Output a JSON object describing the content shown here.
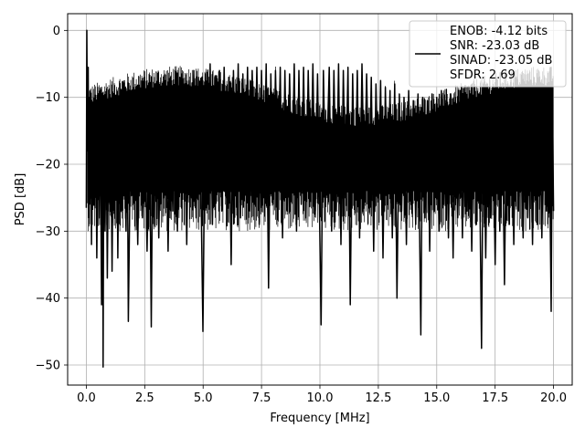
{
  "chart_data": {
    "type": "line",
    "xlabel": "Frequency [MHz]",
    "ylabel": "PSD [dB]",
    "xlim": [
      -0.8,
      20.8
    ],
    "ylim": [
      -53,
      2.5
    ],
    "xticks": [
      0.0,
      2.5,
      5.0,
      7.5,
      10.0,
      12.5,
      15.0,
      17.5,
      20.0
    ],
    "xtick_labels": [
      "0.0",
      "2.5",
      "5.0",
      "7.5",
      "10.0",
      "12.5",
      "15.0",
      "17.5",
      "20.0"
    ],
    "yticks": [
      0,
      -10,
      -20,
      -30,
      -40,
      -50
    ],
    "ytick_labels": [
      "0",
      "−10",
      "−20",
      "−30",
      "−40",
      "−50"
    ],
    "grid": true,
    "legend_position": "top-right",
    "series_color": "#000000",
    "legend_entries": [
      "ENOB: -4.12 bits",
      "SNR: -23.03 dB",
      "SINAD: -23.05 dB",
      "SFDR: 2.69"
    ],
    "series": [
      {
        "points": [
          [
            0.0,
            -26.5
          ],
          [
            0.02,
            0.0
          ],
          [
            0.05,
            -18.0
          ],
          [
            0.08,
            -5.5
          ],
          [
            0.1,
            -20.0
          ],
          [
            0.13,
            -10.0
          ],
          [
            0.16,
            -25.0
          ],
          [
            0.19,
            -12.0
          ],
          [
            0.22,
            -32.0
          ],
          [
            0.25,
            -16.0
          ],
          [
            0.3,
            -11.0
          ],
          [
            0.35,
            -24.0
          ],
          [
            0.4,
            -13.0
          ],
          [
            0.45,
            -34.0
          ],
          [
            0.5,
            -15.0
          ],
          [
            0.55,
            -28.0
          ],
          [
            0.6,
            -14.0
          ],
          [
            0.65,
            -41.0
          ],
          [
            0.7,
            -17.0
          ],
          [
            0.72,
            -50.3
          ],
          [
            0.75,
            -14.0
          ],
          [
            0.8,
            -30.0
          ],
          [
            0.85,
            -13.5
          ],
          [
            0.9,
            -37.0
          ],
          [
            0.95,
            -15.0
          ],
          [
            1.0,
            -26.0
          ],
          [
            1.05,
            -14.0
          ],
          [
            1.1,
            -36.0
          ],
          [
            1.15,
            -16.0
          ],
          [
            1.2,
            -24.0
          ],
          [
            1.3,
            -12.0
          ],
          [
            1.35,
            -34.0
          ],
          [
            1.4,
            -15.0
          ],
          [
            1.5,
            -27.0
          ],
          [
            1.6,
            -13.0
          ],
          [
            1.7,
            -30.0
          ],
          [
            1.75,
            -12.5
          ],
          [
            1.8,
            -43.5
          ],
          [
            1.9,
            -14.0
          ],
          [
            2.0,
            -26.0
          ],
          [
            2.1,
            -11.0
          ],
          [
            2.2,
            -32.0
          ],
          [
            2.3,
            -12.0
          ],
          [
            2.4,
            -28.0
          ],
          [
            2.5,
            -10.5
          ],
          [
            2.6,
            -33.0
          ],
          [
            2.7,
            -11.0
          ],
          [
            2.78,
            -44.3
          ],
          [
            2.85,
            -12.0
          ],
          [
            2.9,
            -29.0
          ],
          [
            3.0,
            -9.0
          ],
          [
            3.1,
            -31.0
          ],
          [
            3.2,
            -10.0
          ],
          [
            3.3,
            -25.0
          ],
          [
            3.4,
            -8.0
          ],
          [
            3.5,
            -33.0
          ],
          [
            3.6,
            -9.0
          ],
          [
            3.7,
            -27.0
          ],
          [
            3.8,
            -8.5
          ],
          [
            3.9,
            -30.0
          ],
          [
            4.0,
            -7.0
          ],
          [
            4.1,
            -24.0
          ],
          [
            4.2,
            -8.0
          ],
          [
            4.3,
            -32.0
          ],
          [
            4.4,
            -7.5
          ],
          [
            4.5,
            -25.0
          ],
          [
            4.6,
            -6.0
          ],
          [
            4.7,
            -28.0
          ],
          [
            4.8,
            -7.0
          ],
          [
            4.9,
            -22.0
          ],
          [
            4.99,
            -45.0
          ],
          [
            5.1,
            -6.5
          ],
          [
            5.2,
            -26.0
          ],
          [
            5.3,
            -5.0
          ],
          [
            5.4,
            -29.0
          ],
          [
            5.5,
            -7.0
          ],
          [
            5.6,
            -23.0
          ],
          [
            5.7,
            -6.0
          ],
          [
            5.8,
            -27.0
          ],
          [
            5.9,
            -5.5
          ],
          [
            6.0,
            -25.0
          ],
          [
            6.1,
            -7.0
          ],
          [
            6.2,
            -35.0
          ],
          [
            6.3,
            -6.0
          ],
          [
            6.4,
            -24.0
          ],
          [
            6.5,
            -5.0
          ],
          [
            6.6,
            -28.0
          ],
          [
            6.7,
            -6.5
          ],
          [
            6.8,
            -22.0
          ],
          [
            6.9,
            -5.5
          ],
          [
            7.0,
            -27.0
          ],
          [
            7.1,
            -6.0
          ],
          [
            7.2,
            -24.0
          ],
          [
            7.3,
            -5.5
          ],
          [
            7.4,
            -29.0
          ],
          [
            7.5,
            -6.0
          ],
          [
            7.6,
            -25.0
          ],
          [
            7.7,
            -5.0
          ],
          [
            7.8,
            -38.5
          ],
          [
            7.9,
            -6.5
          ],
          [
            8.0,
            -26.0
          ],
          [
            8.1,
            -6.0
          ],
          [
            8.2,
            -23.0
          ],
          [
            8.3,
            -5.5
          ],
          [
            8.4,
            -31.0
          ],
          [
            8.5,
            -6.0
          ],
          [
            8.6,
            -27.0
          ],
          [
            8.7,
            -6.5
          ],
          [
            8.8,
            -24.0
          ],
          [
            8.9,
            -5.0
          ],
          [
            9.0,
            -30.0
          ],
          [
            9.1,
            -6.0
          ],
          [
            9.2,
            -26.0
          ],
          [
            9.3,
            -5.5
          ],
          [
            9.4,
            -28.0
          ],
          [
            9.5,
            -6.0
          ],
          [
            9.6,
            -24.0
          ],
          [
            9.7,
            -5.0
          ],
          [
            9.8,
            -27.0
          ],
          [
            9.9,
            -6.5
          ],
          [
            10.05,
            -44.0
          ],
          [
            10.15,
            -6.0
          ],
          [
            10.25,
            -25.0
          ],
          [
            10.4,
            -5.5
          ],
          [
            10.5,
            -30.0
          ],
          [
            10.6,
            -6.0
          ],
          [
            10.7,
            -27.0
          ],
          [
            10.8,
            -5.0
          ],
          [
            10.9,
            -32.0
          ],
          [
            11.0,
            -6.0
          ],
          [
            11.1,
            -25.0
          ],
          [
            11.2,
            -5.5
          ],
          [
            11.3,
            -41.0
          ],
          [
            11.4,
            -6.5
          ],
          [
            11.5,
            -27.0
          ],
          [
            11.6,
            -6.0
          ],
          [
            11.7,
            -31.0
          ],
          [
            11.8,
            -5.0
          ],
          [
            11.9,
            -24.0
          ],
          [
            12.0,
            -6.5
          ],
          [
            12.1,
            -26.0
          ],
          [
            12.2,
            -7.0
          ],
          [
            12.3,
            -33.0
          ],
          [
            12.4,
            -8.0
          ],
          [
            12.5,
            -25.0
          ],
          [
            12.6,
            -7.5
          ],
          [
            12.7,
            -34.0
          ],
          [
            12.8,
            -8.5
          ],
          [
            12.9,
            -26.0
          ],
          [
            13.0,
            -9.0
          ],
          [
            13.1,
            -31.0
          ],
          [
            13.2,
            -8.0
          ],
          [
            13.3,
            -40.0
          ],
          [
            13.4,
            -9.5
          ],
          [
            13.5,
            -27.0
          ],
          [
            13.6,
            -10.0
          ],
          [
            13.7,
            -32.0
          ],
          [
            13.8,
            -9.0
          ],
          [
            13.9,
            -26.0
          ],
          [
            14.0,
            -10.5
          ],
          [
            14.1,
            -29.0
          ],
          [
            14.2,
            -9.5
          ],
          [
            14.32,
            -45.5
          ],
          [
            14.4,
            -10.0
          ],
          [
            14.5,
            -28.0
          ],
          [
            14.6,
            -10.5
          ],
          [
            14.7,
            -33.0
          ],
          [
            14.8,
            -9.5
          ],
          [
            14.9,
            -27.0
          ],
          [
            15.0,
            -10.0
          ],
          [
            15.1,
            -30.0
          ],
          [
            15.2,
            -9.0
          ],
          [
            15.3,
            -26.0
          ],
          [
            15.4,
            -10.5
          ],
          [
            15.5,
            -31.0
          ],
          [
            15.6,
            -9.5
          ],
          [
            15.7,
            -34.0
          ],
          [
            15.8,
            -10.0
          ],
          [
            15.9,
            -28.0
          ],
          [
            16.0,
            -9.0
          ],
          [
            16.1,
            -31.0
          ],
          [
            16.2,
            -10.5
          ],
          [
            16.3,
            -27.0
          ],
          [
            16.4,
            -9.5
          ],
          [
            16.5,
            -33.0
          ],
          [
            16.6,
            -10.0
          ],
          [
            16.7,
            -29.0
          ],
          [
            16.8,
            -9.5
          ],
          [
            16.92,
            -47.5
          ],
          [
            17.0,
            -10.0
          ],
          [
            17.1,
            -34.0
          ],
          [
            17.2,
            -9.0
          ],
          [
            17.3,
            -28.0
          ],
          [
            17.4,
            -10.5
          ],
          [
            17.5,
            -35.0
          ],
          [
            17.6,
            -9.5
          ],
          [
            17.7,
            -30.0
          ],
          [
            17.8,
            -10.0
          ],
          [
            17.9,
            -38.0
          ],
          [
            18.0,
            -9.0
          ],
          [
            18.1,
            -29.0
          ],
          [
            18.2,
            -10.5
          ],
          [
            18.3,
            -32.0
          ],
          [
            18.4,
            -9.5
          ],
          [
            18.5,
            -27.0
          ],
          [
            18.6,
            -10.0
          ],
          [
            18.7,
            -31.0
          ],
          [
            18.8,
            -9.0
          ],
          [
            18.9,
            -28.0
          ],
          [
            19.0,
            -10.5
          ],
          [
            19.1,
            -32.0
          ],
          [
            19.2,
            -9.0
          ],
          [
            19.3,
            -29.0
          ],
          [
            19.4,
            -10.0
          ],
          [
            19.5,
            -31.0
          ],
          [
            19.6,
            -9.5
          ],
          [
            19.7,
            -27.0
          ],
          [
            19.8,
            -8.5
          ],
          [
            19.9,
            -42.0
          ],
          [
            19.95,
            -10.0
          ],
          [
            20.0,
            -27.0
          ]
        ]
      }
    ]
  }
}
